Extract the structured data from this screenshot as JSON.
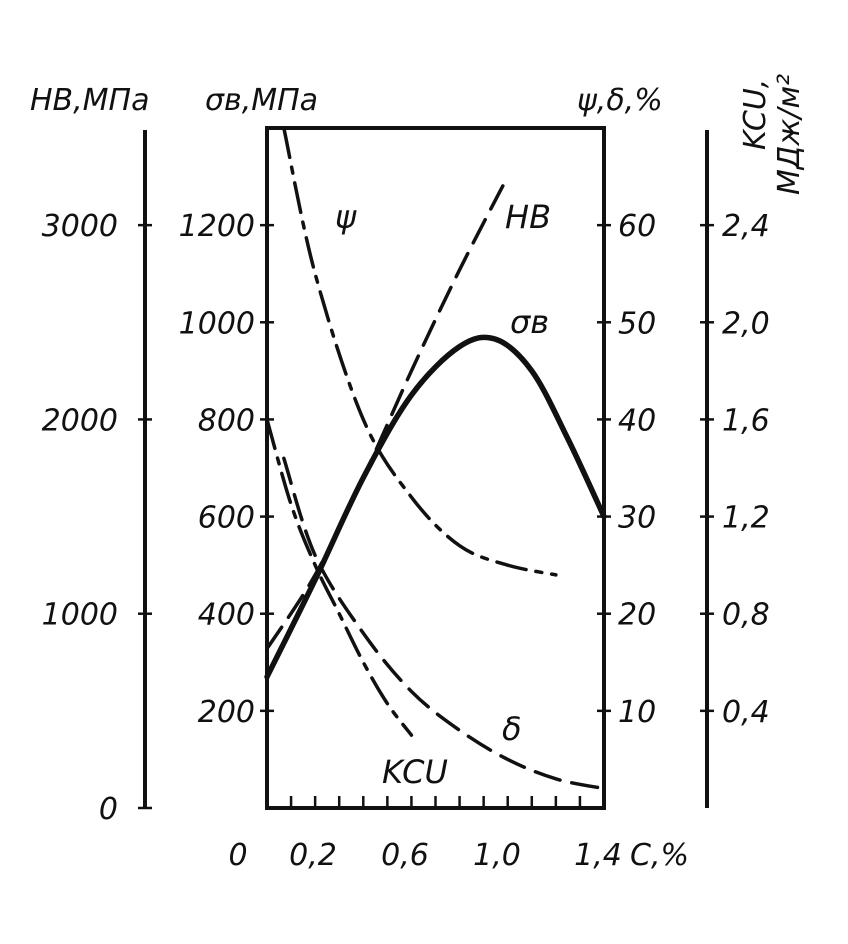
{
  "chart_data": {
    "type": "line",
    "x": {
      "label": "С,%",
      "range": [
        0,
        1.4
      ],
      "tick_labels": [
        "0",
        "0,2",
        "0,6",
        "1,0",
        "1,4"
      ],
      "minor_ticks": [
        0.1,
        0.2,
        0.3,
        0.4,
        0.5,
        0.6,
        0.7,
        0.8,
        0.9,
        1.0,
        1.1,
        1.2,
        1.3
      ]
    },
    "axes": {
      "HB": {
        "title": "HB,МПа",
        "range": [
          0,
          3500
        ],
        "ticks": [
          {
            "value": 0,
            "label": "0"
          },
          {
            "value": 1000,
            "label": "1000"
          },
          {
            "value": 2000,
            "label": "2000"
          },
          {
            "value": 3000,
            "label": "3000"
          }
        ]
      },
      "sigma": {
        "title": "σв,МПа",
        "range": [
          0,
          1400
        ],
        "ticks": [
          {
            "value": 200,
            "label": "200"
          },
          {
            "value": 400,
            "label": "400"
          },
          {
            "value": 600,
            "label": "600"
          },
          {
            "value": 800,
            "label": "800"
          },
          {
            "value": 1000,
            "label": "1000"
          },
          {
            "value": 1200,
            "label": "1200"
          }
        ]
      },
      "psi_delta": {
        "title": "ψ,δ,%",
        "range": [
          0,
          70
        ],
        "ticks": [
          {
            "value": 10,
            "label": "10"
          },
          {
            "value": 20,
            "label": "20"
          },
          {
            "value": 30,
            "label": "30"
          },
          {
            "value": 40,
            "label": "40"
          },
          {
            "value": 50,
            "label": "50"
          },
          {
            "value": 60,
            "label": "60"
          }
        ]
      },
      "KCU": {
        "title_line1": "KCU,",
        "title_line2": "МДж/м²",
        "range": [
          0,
          2.8
        ],
        "ticks": [
          {
            "value": 0.4,
            "label": "0,4"
          },
          {
            "value": 0.8,
            "label": "0,8"
          },
          {
            "value": 1.2,
            "label": "1,2"
          },
          {
            "value": 1.6,
            "label": "1,6"
          },
          {
            "value": 2.0,
            "label": "2,0"
          },
          {
            "value": 2.4,
            "label": "2,4"
          }
        ]
      }
    },
    "series": [
      {
        "name": "HB",
        "axis": "HB",
        "style": "dash",
        "x": [
          0,
          0.2,
          0.4,
          0.6,
          0.8,
          1.0
        ],
        "y": [
          820,
          1200,
          1700,
          2250,
          2770,
          3250
        ]
      },
      {
        "name": "σв",
        "axis": "sigma",
        "style": "solid",
        "x": [
          0,
          0.2,
          0.4,
          0.6,
          0.8,
          0.95,
          1.1,
          1.25,
          1.4
        ],
        "y": [
          270,
          470,
          680,
          850,
          950,
          965,
          900,
          760,
          600
        ]
      },
      {
        "name": "ψ",
        "axis": "psi_delta",
        "style": "dashdot",
        "x": [
          0.07,
          0.2,
          0.4,
          0.6,
          0.8,
          1.0,
          1.2
        ],
        "y": [
          70,
          55,
          40,
          32,
          27,
          25,
          24
        ]
      },
      {
        "name": "δ",
        "axis": "psi_delta",
        "style": "dash",
        "x": [
          0.07,
          0.2,
          0.4,
          0.6,
          0.8,
          1.0,
          1.2,
          1.4
        ],
        "y": [
          36,
          26,
          18,
          12,
          8,
          5,
          3,
          2
        ]
      },
      {
        "name": "KCU",
        "axis": "KCU",
        "style": "dashdot",
        "x": [
          0,
          0.1,
          0.2,
          0.3,
          0.4,
          0.5,
          0.6
        ],
        "y": [
          1.6,
          1.25,
          1.0,
          0.8,
          0.6,
          0.43,
          0.3
        ]
      }
    ]
  }
}
